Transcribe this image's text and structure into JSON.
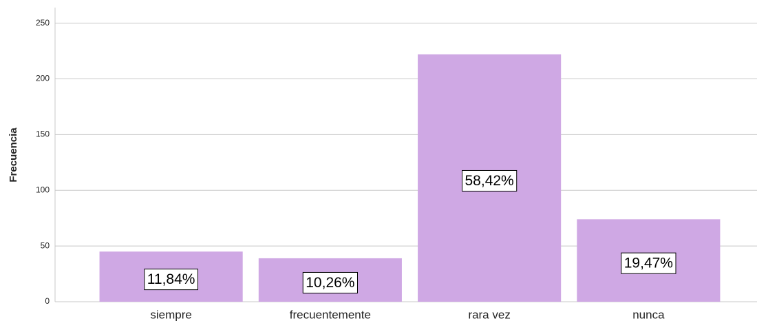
{
  "chart_data": {
    "type": "bar",
    "y_label": "Frecuencia",
    "categories": [
      "siempre",
      "frecuentemente",
      "rara vez",
      "nunca"
    ],
    "values": [
      45,
      39,
      222,
      74
    ],
    "percentages": [
      11.84,
      10.26,
      58.42,
      19.47
    ],
    "percentage_labels": [
      "11,84%",
      "10,26%",
      "58,42%",
      "19,47%"
    ],
    "color": "#cfa8e4",
    "ylim": [
      0,
      264
    ],
    "yticks": [
      0,
      50,
      100,
      150,
      200,
      250
    ],
    "grid": true
  }
}
